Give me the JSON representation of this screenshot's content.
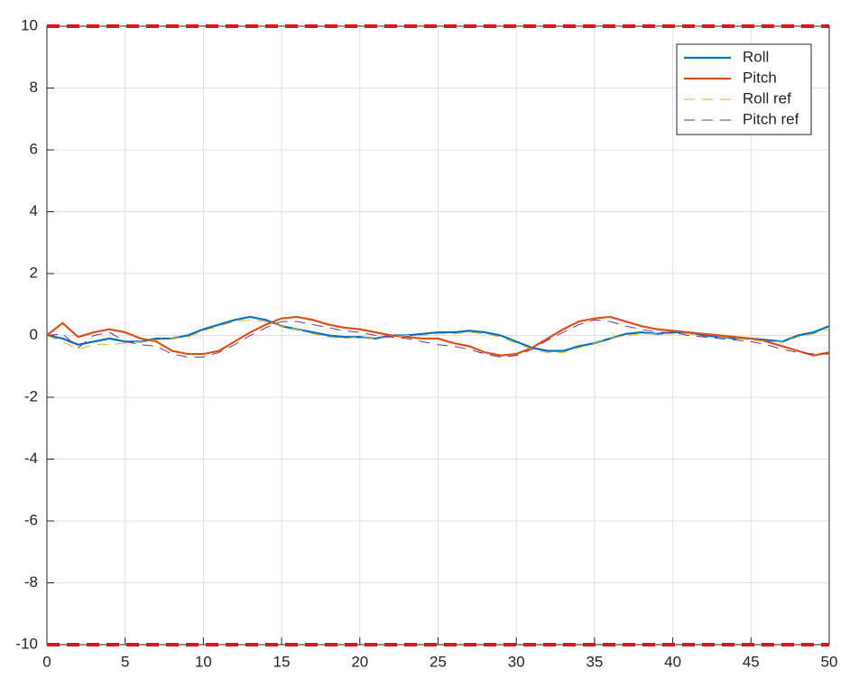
{
  "chart_data": {
    "type": "line",
    "x": [
      0,
      1,
      2,
      3,
      4,
      5,
      6,
      7,
      8,
      9,
      10,
      11,
      12,
      13,
      14,
      15,
      16,
      17,
      18,
      19,
      20,
      21,
      22,
      23,
      24,
      25,
      26,
      27,
      28,
      29,
      30,
      31,
      32,
      33,
      34,
      35,
      36,
      37,
      38,
      39,
      40,
      41,
      42,
      43,
      44,
      45,
      46,
      47,
      48,
      49,
      50
    ],
    "series": [
      {
        "name": "Roll",
        "color": "#0072bd",
        "dashed": false,
        "values": [
          0,
          -0.1,
          -0.3,
          -0.2,
          -0.1,
          -0.2,
          -0.2,
          -0.1,
          -0.1,
          0,
          0.2,
          0.35,
          0.5,
          0.6,
          0.5,
          0.3,
          0.2,
          0.1,
          0,
          -0.05,
          -0.05,
          -0.1,
          0,
          0,
          0.05,
          0.1,
          0.1,
          0.15,
          0.1,
          0,
          -0.2,
          -0.4,
          -0.5,
          -0.5,
          -0.35,
          -0.25,
          -0.1,
          0.05,
          0.1,
          0.05,
          0.1,
          0.1,
          0,
          -0.05,
          -0.1,
          -0.1,
          -0.15,
          -0.2,
          0,
          0.1,
          0.3
        ]
      },
      {
        "name": "Pitch",
        "color": "#d95319",
        "dashed": false,
        "values": [
          0,
          0.4,
          -0.05,
          0.1,
          0.2,
          0.1,
          -0.1,
          -0.2,
          -0.5,
          -0.6,
          -0.6,
          -0.5,
          -0.2,
          0.1,
          0.35,
          0.55,
          0.6,
          0.5,
          0.35,
          0.25,
          0.2,
          0.1,
          0,
          -0.05,
          -0.1,
          -0.1,
          -0.25,
          -0.35,
          -0.55,
          -0.65,
          -0.6,
          -0.4,
          -0.1,
          0.2,
          0.45,
          0.55,
          0.6,
          0.45,
          0.3,
          0.2,
          0.15,
          0.1,
          0.05,
          0,
          -0.05,
          -0.1,
          -0.2,
          -0.35,
          -0.5,
          -0.65,
          -0.55
        ]
      },
      {
        "name": "Roll ref",
        "color": "#edb120",
        "dashed": true,
        "values": [
          0,
          -0.2,
          -0.45,
          -0.3,
          -0.3,
          -0.25,
          -0.2,
          -0.15,
          -0.1,
          -0.05,
          0.15,
          0.3,
          0.45,
          0.5,
          0.45,
          0.3,
          0.2,
          0.05,
          -0.05,
          -0.1,
          -0.05,
          -0.1,
          -0.05,
          0,
          0,
          0.05,
          0.05,
          0.1,
          0.05,
          -0.05,
          -0.25,
          -0.45,
          -0.55,
          -0.55,
          -0.4,
          -0.25,
          -0.1,
          0,
          0.05,
          0.05,
          0.05,
          0.05,
          -0.05,
          -0.05,
          -0.1,
          -0.15,
          -0.2,
          -0.2,
          -0.05,
          0.05,
          0.2
        ]
      },
      {
        "name": "Pitch ref",
        "color": "#7e2f8e",
        "dashed": true,
        "values": [
          0,
          0.05,
          -0.4,
          0,
          0.1,
          -0.2,
          -0.3,
          -0.35,
          -0.6,
          -0.7,
          -0.7,
          -0.55,
          -0.3,
          0,
          0.25,
          0.45,
          0.45,
          0.35,
          0.25,
          0.15,
          0.1,
          0,
          -0.05,
          -0.1,
          -0.2,
          -0.3,
          -0.35,
          -0.45,
          -0.6,
          -0.7,
          -0.65,
          -0.45,
          -0.15,
          0.1,
          0.35,
          0.5,
          0.45,
          0.3,
          0.2,
          0.1,
          0.1,
          0,
          -0.05,
          -0.1,
          -0.15,
          -0.2,
          -0.3,
          -0.45,
          -0.55,
          -0.6,
          -0.6
        ]
      }
    ],
    "limit_lines": [
      10,
      -10
    ],
    "limit_color": "#d7191c",
    "xlim": [
      0,
      50
    ],
    "xticks": [
      0,
      5,
      10,
      15,
      20,
      25,
      30,
      35,
      40,
      45,
      50
    ],
    "ylim": [
      -10,
      10
    ],
    "yticks": [
      -10,
      -8,
      -6,
      -4,
      -2,
      0,
      2,
      4,
      6,
      8,
      10
    ],
    "grid": true,
    "legend": "northeast"
  }
}
